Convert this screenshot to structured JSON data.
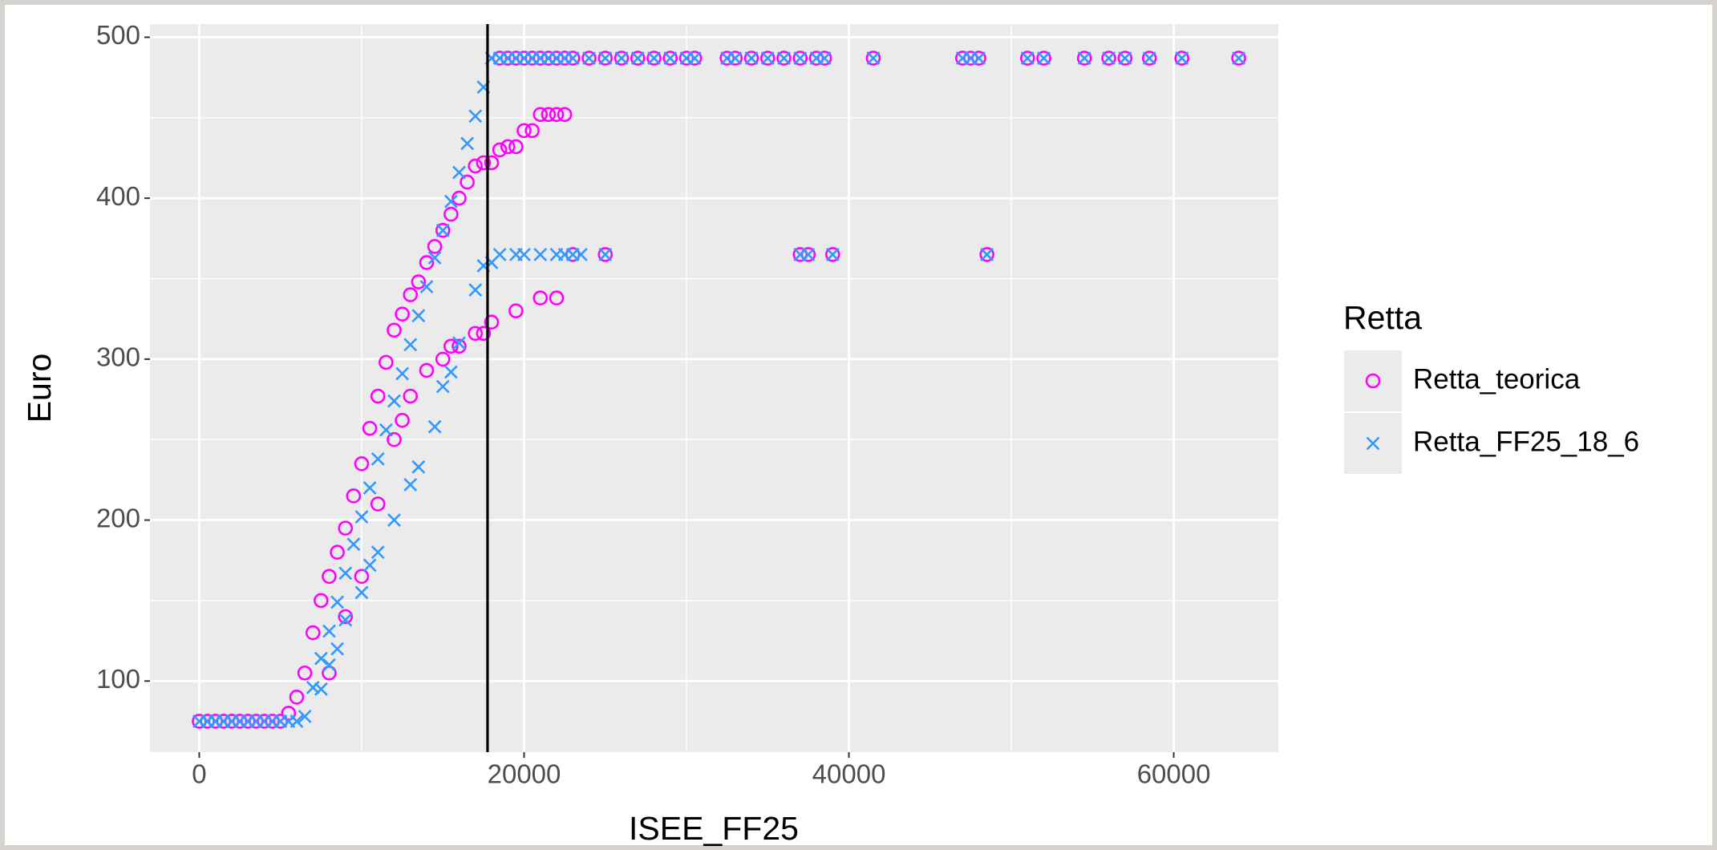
{
  "chart_data": {
    "type": "scatter",
    "x_label": "ISEE_FF25",
    "y_label": "Euro",
    "legend_title": "Retta",
    "legend_position": "right",
    "xlim": [
      -3035,
      66440
    ],
    "ylim": [
      55.8,
      508.2
    ],
    "xticks": [
      0,
      20000,
      40000,
      60000
    ],
    "yticks": [
      100,
      200,
      300,
      400,
      500
    ],
    "grid": true,
    "vline": 17750,
    "vline_color": "#000000",
    "series": [
      {
        "name": "Retta_teorica",
        "color": "#FF00FF",
        "marker": "circle",
        "x": [
          0,
          500,
          1000,
          1500,
          2000,
          2500,
          3000,
          3500,
          4000,
          4500,
          5000,
          5500,
          6000,
          6500,
          7000,
          7500,
          8000,
          8500,
          9000,
          9500,
          10000,
          10500,
          11000,
          11500,
          12000,
          12500,
          13000,
          13500,
          14000,
          14500,
          15000,
          15500,
          16000,
          16500,
          17000,
          17500,
          18000,
          18500,
          19000,
          19500,
          20000,
          20500,
          21000,
          21500,
          22000,
          22500,
          8000,
          9000,
          10000,
          11000,
          12000,
          12500,
          13000,
          14000,
          15000,
          15500,
          16000,
          17000,
          17500,
          18000,
          19500,
          21000,
          22000,
          23000,
          25000,
          37000,
          37500,
          39000,
          48500,
          18500,
          19000,
          19500,
          20000,
          20500,
          21000,
          21500,
          22000,
          22500,
          23000,
          24000,
          25000,
          26000,
          27000,
          28000,
          29000,
          30000,
          30500,
          32500,
          33000,
          34000,
          35000,
          36000,
          37000,
          38000,
          38500,
          41500,
          47000,
          47500,
          48000,
          51000,
          52000,
          54500,
          56000,
          57000,
          58500,
          60500,
          64000
        ],
        "values": [
          75,
          75,
          75,
          75,
          75,
          75,
          75,
          75,
          75,
          75,
          75,
          80,
          90,
          105,
          130,
          150,
          165,
          180,
          195,
          215,
          235,
          257,
          277,
          298,
          318,
          328,
          340,
          348,
          360,
          370,
          380,
          390,
          400,
          410,
          420,
          422,
          422,
          430,
          432,
          432,
          442,
          442,
          452,
          452,
          452,
          452,
          105,
          140,
          165,
          210,
          250,
          262,
          277,
          293,
          300,
          308,
          308,
          316,
          316,
          323,
          330,
          338,
          338,
          365,
          365,
          365,
          365,
          365,
          365,
          487,
          487,
          487,
          487,
          487,
          487,
          487,
          487,
          487,
          487,
          487,
          487,
          487,
          487,
          487,
          487,
          487,
          487,
          487,
          487,
          487,
          487,
          487,
          487,
          487,
          487,
          487,
          487,
          487,
          487,
          487,
          487,
          487,
          487,
          487,
          487,
          487,
          487
        ]
      },
      {
        "name": "Retta_FF25_18_6",
        "color": "#3399FF",
        "marker": "cross",
        "x": [
          0,
          500,
          1000,
          1500,
          2000,
          2500,
          3000,
          3500,
          4000,
          4500,
          5000,
          5500,
          6000,
          6500,
          7000,
          7500,
          8000,
          8500,
          9000,
          9500,
          10000,
          10500,
          11000,
          11500,
          12000,
          12500,
          13000,
          13500,
          14000,
          14500,
          15000,
          15500,
          16000,
          16500,
          17000,
          17500,
          18000,
          7500,
          8000,
          8500,
          9000,
          10000,
          10500,
          11000,
          12000,
          13000,
          13500,
          14500,
          15000,
          15500,
          16000,
          17000,
          17500,
          18000,
          18500,
          19500,
          20000,
          21000,
          22000,
          22500,
          23000,
          23500,
          25000,
          37000,
          37500,
          39000,
          48500,
          18500,
          19000,
          19500,
          20000,
          20500,
          21000,
          21500,
          22000,
          22500,
          23000,
          24000,
          25000,
          26000,
          27000,
          28000,
          29000,
          30000,
          30500,
          32500,
          33000,
          34000,
          35000,
          36000,
          37000,
          38000,
          38500,
          41500,
          47000,
          47500,
          48000,
          51000,
          52000,
          54500,
          56000,
          57000,
          58500,
          60500,
          64000
        ],
        "values": [
          75,
          75,
          75,
          75,
          75,
          75,
          75,
          75,
          75,
          75,
          75,
          75,
          75,
          78,
          96,
          114,
          131,
          149,
          167,
          185,
          202,
          220,
          238,
          256,
          274,
          291,
          309,
          327,
          345,
          363,
          380,
          398,
          416,
          434,
          451,
          469,
          487,
          95,
          110,
          120,
          138,
          155,
          172,
          180,
          200,
          222,
          233,
          258,
          283,
          292,
          310,
          343,
          358,
          360,
          365,
          365,
          365,
          365,
          365,
          365,
          365,
          365,
          365,
          365,
          365,
          365,
          365,
          487,
          487,
          487,
          487,
          487,
          487,
          487,
          487,
          487,
          487,
          487,
          487,
          487,
          487,
          487,
          487,
          487,
          487,
          487,
          487,
          487,
          487,
          487,
          487,
          487,
          487,
          487,
          487,
          487,
          487,
          487,
          487,
          487,
          487,
          487,
          487,
          487,
          487
        ]
      }
    ]
  }
}
